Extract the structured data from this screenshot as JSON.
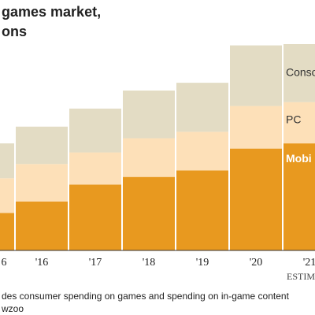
{
  "chart_data": {
    "type": "stacked_bar",
    "title_lines": [
      "games market,",
      "ons"
    ],
    "categories": [
      "6",
      "'16",
      "'17",
      "'18",
      "'19",
      "'20",
      "'21"
    ],
    "series": [
      {
        "name": "Mobi",
        "color": "#e8991f",
        "values": [
          29,
          38,
          51,
          57,
          62,
          79,
          83
        ]
      },
      {
        "name": "PC",
        "color": "#fde0b8",
        "values": [
          27,
          29,
          25,
          30,
          30,
          33,
          32
        ]
      },
      {
        "name": "Conso",
        "color": "#e3dcc4",
        "values": [
          27,
          29,
          34,
          37,
          38,
          47,
          45
        ]
      }
    ],
    "ylim": [
      0,
      160
    ],
    "annotation": "ESTIM",
    "notes": [
      "des consumer spending on games and spending on in-game content",
      "wzoo"
    ]
  }
}
